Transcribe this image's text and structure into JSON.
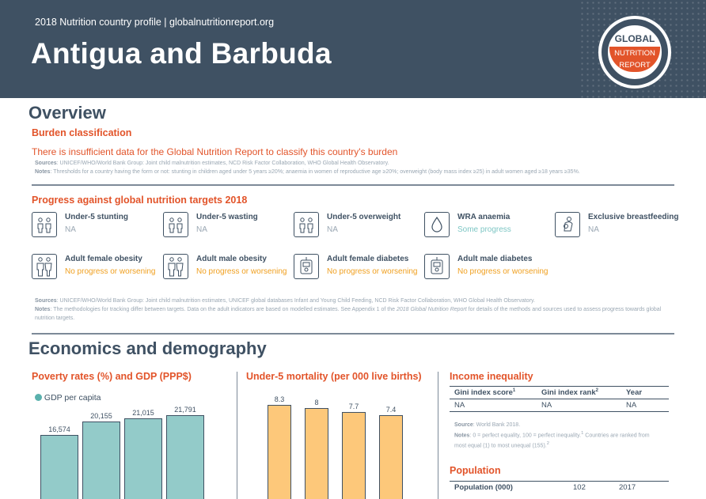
{
  "header": {
    "subtitle": "2018 Nutrition country profile  |  globalnutritionreport.org",
    "country": "Antigua and Barbuda",
    "logo": {
      "line1": "GLOBAL",
      "line2": "NUTRITION",
      "line3": "REPORT"
    }
  },
  "overview": {
    "title": "Overview",
    "burden_heading": "Burden classification",
    "burden_text": "There is insufficient data for the Global Nutrition Report to classify this country's burden",
    "sources_label": "Sources",
    "sources_text": ": UNICEF/WHO/World Bank Group: Joint child malnutrition estimates, NCD Risk Factor Collaboration, WHO Global Health Observatory.",
    "notes_label": "Notes",
    "notes_text": ": Thresholds for a country having the form or not: stunting in children aged under 5 years ≥20%; anaemia in women of reproductive age ≥20%; overweight (body mass index ≥25) in adult women aged ≥18 years ≥35%."
  },
  "progress": {
    "heading": "Progress against global nutrition targets 2018",
    "indicators": [
      {
        "label": "Under-5 stunting",
        "status": "NA",
        "icon": "children-icon"
      },
      {
        "label": "Under-5 wasting",
        "status": "NA",
        "icon": "children-icon"
      },
      {
        "label": "Under-5 overweight",
        "status": "NA",
        "icon": "children-icon"
      },
      {
        "label": "WRA anaemia",
        "status": "Some progress",
        "icon": "blood-drop-icon"
      },
      {
        "label": "Exclusive breastfeeding",
        "status": "NA",
        "icon": "breastfeeding-icon"
      },
      {
        "label": "Adult female obesity",
        "status": "No progress or worsening",
        "icon": "adults-icon"
      },
      {
        "label": "Adult male obesity",
        "status": "No progress or worsening",
        "icon": "adults-icon"
      },
      {
        "label": "Adult female diabetes",
        "status": "No progress or worsening",
        "icon": "glucose-meter-icon"
      },
      {
        "label": "Adult male diabetes",
        "status": "No progress or worsening",
        "icon": "glucose-meter-icon"
      }
    ],
    "sources_label": "Sources",
    "sources_text": ": UNICEF/WHO/World Bank Group: Joint child malnutrition estimates, UNICEF global databases Infant and Young Child Feeding, NCD Risk Factor Collaboration, WHO Global Health Observatory.",
    "notes_label": "Notes",
    "notes_text1": ": The methodologies for tracking differ between targets. Data on the adult indicators are based on modelled estimates. See Appendix 1 of the",
    "notes_report": "2018 Global Nutrition Report",
    "notes_text2": "for details of the methods and sources used to assess progress towards global nutrition targets."
  },
  "economics": {
    "title": "Economics and demography",
    "poverty": {
      "heading": "Poverty rates (%) and GDP (PPP$)",
      "legend": "GDP per capita"
    },
    "mortality": {
      "heading": "Under-5 mortality (per 000 live births)"
    },
    "income": {
      "heading": "Income inequality",
      "columns": [
        "Gini index score",
        "Gini index rank",
        "Year"
      ],
      "column_sups": [
        "1",
        "2",
        ""
      ],
      "row": [
        "NA",
        "NA",
        "NA"
      ],
      "source_label": "Source",
      "source_text": ": World Bank 2018.",
      "notes_label": "Notes",
      "notes_text": ": 0 = perfect equality, 100 = perfect inequality.",
      "notes_sup1": "1",
      "notes_text2": " Countries are ranked from most equal (1) to most unequal (155).",
      "notes_sup2": "2"
    },
    "population": {
      "heading": "Population",
      "label": "Population (000)",
      "value": "102",
      "year": "2017"
    }
  },
  "colors": {
    "header": "#3f5163",
    "accent": "#e2542a",
    "gdp_bar": "#93cbc9",
    "mortality_bar": "#fdc87a",
    "progress": "#7dc6c4",
    "worsening": "#f0a020"
  },
  "chart_data": [
    {
      "type": "bar",
      "series": [
        {
          "name": "GDP per capita",
          "values": [
            16574,
            20155,
            21015,
            21791
          ],
          "labels": [
            "16,574",
            "20,155",
            "21,015",
            "21,791"
          ]
        }
      ],
      "legend": "top-left"
    },
    {
      "type": "bar",
      "series": [
        {
          "values": [
            8.3,
            8,
            7.7,
            7.4
          ],
          "labels": [
            "8.3",
            "8",
            "7.7",
            "7.4"
          ]
        }
      ]
    }
  ]
}
